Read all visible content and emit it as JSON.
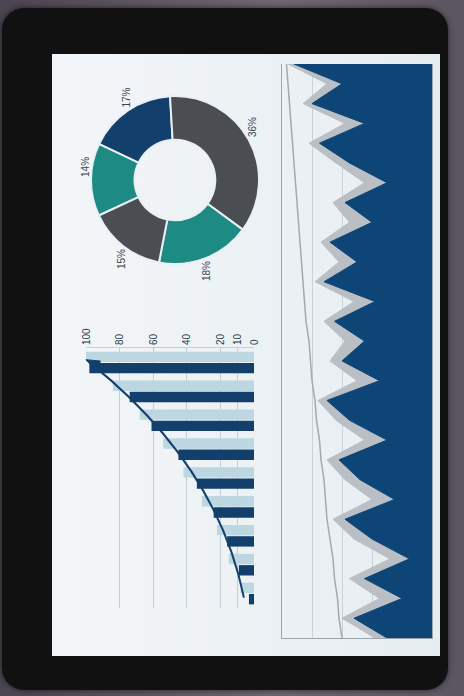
{
  "chart_data": [
    {
      "type": "bar",
      "categories": [
        null,
        null,
        null,
        null,
        null,
        null,
        null,
        null,
        null
      ],
      "series": [
        {
          "color": "#123f6b",
          "values": [
            3,
            9,
            16,
            24,
            34,
            45,
            61,
            74,
            98
          ]
        },
        {
          "color": "#bcd6e2",
          "values": [
            8,
            15,
            22,
            31,
            42,
            54,
            68,
            84,
            100
          ]
        }
      ],
      "ylim": [
        0,
        100
      ],
      "yticks": [
        0,
        10,
        20,
        40,
        60,
        80,
        100
      ],
      "grid": true,
      "tick_labels": "y"
    },
    {
      "type": "pie",
      "values": [
        14,
        17,
        36,
        18,
        15
      ],
      "value_labels": [
        "14%",
        "17%",
        "36%",
        "18%",
        "15%"
      ],
      "colors": [
        "#1d8a84",
        "#123f6b",
        "#4a4d52",
        "#1d8a84",
        "#4a4d52"
      ],
      "data_labels": true
    },
    {
      "type": "area",
      "x": [
        0,
        1,
        2,
        3,
        4,
        5,
        6,
        7,
        8,
        9,
        10,
        11,
        12,
        13,
        14,
        15,
        16,
        17,
        18,
        19,
        20,
        21,
        22,
        23,
        24,
        25,
        26,
        27,
        28,
        29
      ],
      "series": [
        {
          "type": "area",
          "color": "#b9bfc4",
          "values": [
            38,
            60,
            35,
            55,
            28,
            52,
            66,
            40,
            58,
            70,
            45,
            64,
            76,
            50,
            68,
            58,
            72,
            52,
            78,
            62,
            74,
            55,
            66,
            45,
            64,
            82,
            58,
            86,
            70,
            96
          ]
        },
        {
          "type": "area",
          "color": "#0d4577",
          "values": [
            30,
            52,
            20,
            45,
            15,
            40,
            58,
            25,
            48,
            62,
            30,
            55,
            70,
            35,
            60,
            45,
            65,
            38,
            72,
            50,
            68,
            40,
            58,
            30,
            55,
            75,
            45,
            80,
            60,
            92
          ]
        },
        {
          "type": "line",
          "color": "#a3a9ae",
          "values": [
            60,
            62,
            63,
            65,
            66,
            68,
            70,
            71,
            72,
            74,
            75,
            77,
            78,
            80,
            81,
            82,
            84,
            85,
            86,
            87,
            88,
            89,
            90,
            91,
            92,
            93,
            94,
            95,
            96,
            97
          ]
        }
      ],
      "xlim": [
        0,
        29
      ],
      "ylim": [
        0,
        100
      ],
      "yticks": [
        0,
        20,
        40,
        60,
        80,
        100
      ],
      "grid": true,
      "tick_labels": false
    }
  ]
}
